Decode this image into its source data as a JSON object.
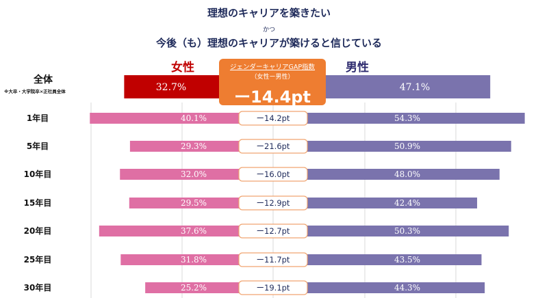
{
  "title_line1": "理想のキャリアを築きたい",
  "title_line2": "かつ",
  "title_line3": "今後（も）理想のキャリアが築けると信じている",
  "legend": {
    "female": "女性",
    "male": "男性"
  },
  "total": {
    "label": "全体",
    "note": "※大卒・大学院卒×正社員全体",
    "female": "32.7%",
    "male": "47.1%",
    "gap_caption1": "ジェンダーキャリアGAP指数",
    "gap_caption2": "（女性ー男性）",
    "gap": "ー14.4pt"
  },
  "colors": {
    "female_total": "#c00000",
    "male_total": "#7a73ad",
    "female": "#df6fa4",
    "male": "#7a73ad",
    "gap_box": "#ee7d31",
    "gap_border": "#f0a570"
  },
  "chart_data": {
    "type": "bar",
    "title": "理想のキャリアを築きたい かつ 今後（も）理想のキャリアが築けると信じている",
    "categories": [
      "1年目",
      "5年目",
      "10年目",
      "15年目",
      "20年目",
      "25年目",
      "30年目"
    ],
    "series": [
      {
        "name": "女性",
        "values": [
          40.1,
          29.3,
          32.0,
          29.5,
          37.6,
          31.8,
          25.2
        ]
      },
      {
        "name": "男性",
        "values": [
          54.3,
          50.9,
          48.0,
          42.4,
          50.3,
          43.5,
          44.3
        ]
      }
    ],
    "value_labels": {
      "female": [
        "40.1%",
        "29.3%",
        "32.0%",
        "29.5%",
        "37.6%",
        "31.8%",
        "25.2%"
      ],
      "male": [
        "54.3%",
        "50.9%",
        "48.0%",
        "42.4%",
        "50.3%",
        "43.5%",
        "44.3%"
      ]
    },
    "gap_labels": [
      "ー14.2pt",
      "ー21.6pt",
      "ー16.0pt",
      "ー12.9pt",
      "ー12.7pt",
      "ー11.7pt",
      "ー19.1pt"
    ],
    "total": {
      "female": 32.7,
      "male": 47.1,
      "gap": -14.4
    }
  }
}
